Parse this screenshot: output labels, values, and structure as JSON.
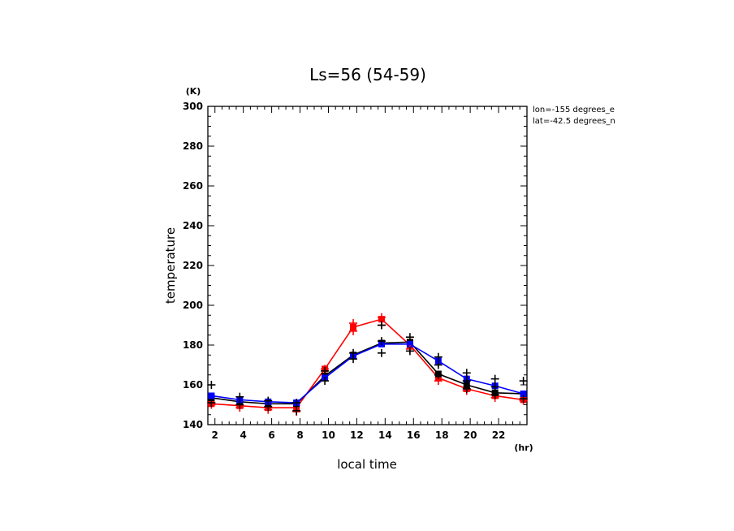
{
  "chart_data": {
    "type": "line",
    "title": "Ls=56 (54-59)",
    "xlabel": "local time",
    "ylabel": "temperature",
    "x_unit": "(hr)",
    "y_unit": "(K)",
    "xlim": [
      1.5,
      24
    ],
    "ylim": [
      140,
      300
    ],
    "x_ticks": [
      2,
      4,
      6,
      8,
      10,
      12,
      14,
      16,
      18,
      20,
      22
    ],
    "y_ticks": [
      140,
      160,
      180,
      200,
      220,
      240,
      260,
      280,
      300
    ],
    "annotations": [
      "lon=-155 degrees_e",
      "lat=-42.5 degrees_n"
    ],
    "grid": false,
    "x": [
      1.75,
      3.75,
      5.75,
      7.75,
      9.75,
      11.75,
      13.75,
      15.75,
      17.75,
      19.75,
      21.75,
      23.75
    ],
    "series": [
      {
        "color": "#ff0000",
        "marker": "square",
        "values": [
          150.5,
          149.5,
          148.5,
          148.5,
          168,
          189,
          193,
          180,
          163.5,
          158,
          154.5,
          152.5
        ]
      },
      {
        "color": "#000000",
        "marker": "square",
        "values": [
          153.5,
          151.5,
          150.5,
          150.5,
          164.5,
          175,
          181,
          181.5,
          165.5,
          160,
          156,
          155.5
        ]
      },
      {
        "color": "#0000ff",
        "marker": "square",
        "values": [
          154.5,
          152.5,
          151.5,
          151,
          163.5,
          174.5,
          180.5,
          180.5,
          172,
          163,
          159.5,
          155.5
        ]
      }
    ],
    "scatter_color": "#000000",
    "scatter": [
      [
        1.75,
        160
      ],
      [
        1.75,
        151
      ],
      [
        3.75,
        154
      ],
      [
        3.75,
        150
      ],
      [
        5.75,
        152
      ],
      [
        5.75,
        149
      ],
      [
        7.75,
        151
      ],
      [
        7.75,
        147
      ],
      [
        9.75,
        162
      ],
      [
        9.75,
        167
      ],
      [
        11.75,
        173
      ],
      [
        11.75,
        176
      ],
      [
        13.75,
        176
      ],
      [
        13.75,
        182
      ],
      [
        13.75,
        190
      ],
      [
        15.75,
        177
      ],
      [
        15.75,
        184
      ],
      [
        17.75,
        165
      ],
      [
        17.75,
        170
      ],
      [
        17.75,
        174
      ],
      [
        19.75,
        158
      ],
      [
        19.75,
        162
      ],
      [
        19.75,
        166
      ],
      [
        21.75,
        155
      ],
      [
        21.75,
        159
      ],
      [
        21.75,
        163
      ],
      [
        23.75,
        153
      ],
      [
        23.75,
        162
      ]
    ],
    "scatter_red": [
      [
        1.75,
        150
      ],
      [
        3.75,
        148.5
      ],
      [
        5.75,
        147.5
      ],
      [
        7.75,
        146.5
      ],
      [
        9.75,
        168
      ],
      [
        11.75,
        187
      ],
      [
        11.75,
        191
      ],
      [
        13.75,
        190
      ],
      [
        13.75,
        194
      ],
      [
        15.75,
        178
      ],
      [
        17.75,
        162
      ],
      [
        19.75,
        157
      ],
      [
        21.75,
        153.5
      ],
      [
        23.75,
        152
      ]
    ]
  }
}
